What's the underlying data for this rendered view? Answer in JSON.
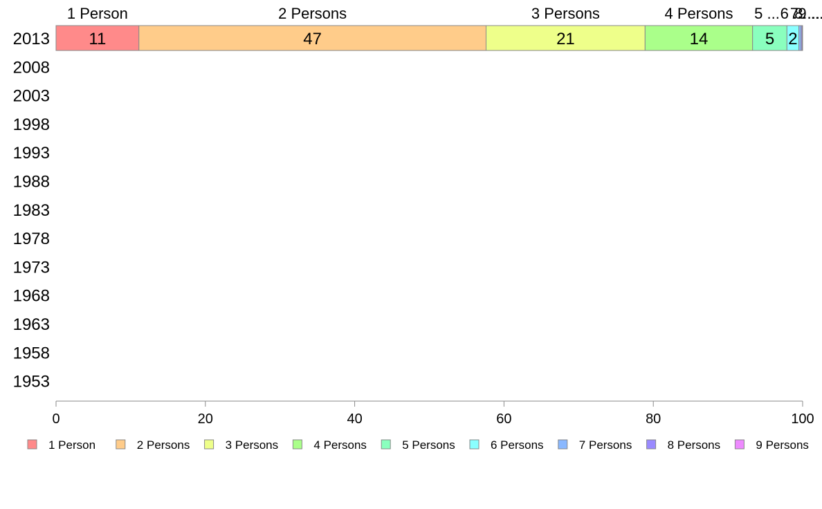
{
  "chart_data": {
    "type": "bar",
    "orientation": "horizontal",
    "stacked": true,
    "title": "",
    "xlabel": "",
    "ylabel": "",
    "xlim": [
      0,
      100
    ],
    "x_ticks": [
      0,
      20,
      40,
      60,
      80,
      100
    ],
    "categories": [
      "2013",
      "2008",
      "2003",
      "1998",
      "1993",
      "1988",
      "1983",
      "1978",
      "1973",
      "1968",
      "1963",
      "1958",
      "1953"
    ],
    "grid": false,
    "legend_position": "bottom",
    "segment_header_labels": [
      "1 Person",
      "2 Persons",
      "3 Persons",
      "4 Persons",
      "5 ...",
      "6 ...",
      "7 ...",
      "8 ...",
      "9 ..."
    ],
    "series": [
      {
        "name": "1 Person",
        "color": "#ff8a8a",
        "values": [
          11.1,
          null,
          null,
          null,
          null,
          null,
          null,
          null,
          null,
          null,
          null,
          null,
          null
        ]
      },
      {
        "name": "2 Persons",
        "color": "#ffcc8a",
        "values": [
          46.5,
          null,
          null,
          null,
          null,
          null,
          null,
          null,
          null,
          null,
          null,
          null,
          null
        ]
      },
      {
        "name": "3 Persons",
        "color": "#eeff8a",
        "values": [
          21.3,
          null,
          null,
          null,
          null,
          null,
          null,
          null,
          null,
          null,
          null,
          null,
          null
        ]
      },
      {
        "name": "4 Persons",
        "color": "#aaff8a",
        "values": [
          14.4,
          null,
          null,
          null,
          null,
          null,
          null,
          null,
          null,
          null,
          null,
          null,
          null
        ]
      },
      {
        "name": "5 Persons",
        "color": "#8affbe",
        "values": [
          4.6,
          null,
          null,
          null,
          null,
          null,
          null,
          null,
          null,
          null,
          null,
          null,
          null
        ]
      },
      {
        "name": "6 Persons",
        "color": "#8affff",
        "values": [
          1.6,
          null,
          null,
          null,
          null,
          null,
          null,
          null,
          null,
          null,
          null,
          null,
          null
        ]
      },
      {
        "name": "7 Persons",
        "color": "#8ab8ff",
        "values": [
          0.3,
          null,
          null,
          null,
          null,
          null,
          null,
          null,
          null,
          null,
          null,
          null,
          null
        ]
      },
      {
        "name": "8 Persons",
        "color": "#9a8aff",
        "values": [
          0.15,
          null,
          null,
          null,
          null,
          null,
          null,
          null,
          null,
          null,
          null,
          null,
          null
        ]
      },
      {
        "name": "9 Persons",
        "color": "#ee8aff",
        "values": [
          0.05,
          null,
          null,
          null,
          null,
          null,
          null,
          null,
          null,
          null,
          null,
          null,
          null
        ]
      }
    ],
    "data_labels_2013": [
      "11",
      "47",
      "21",
      "14",
      "5",
      "2",
      "",
      "",
      ""
    ]
  }
}
